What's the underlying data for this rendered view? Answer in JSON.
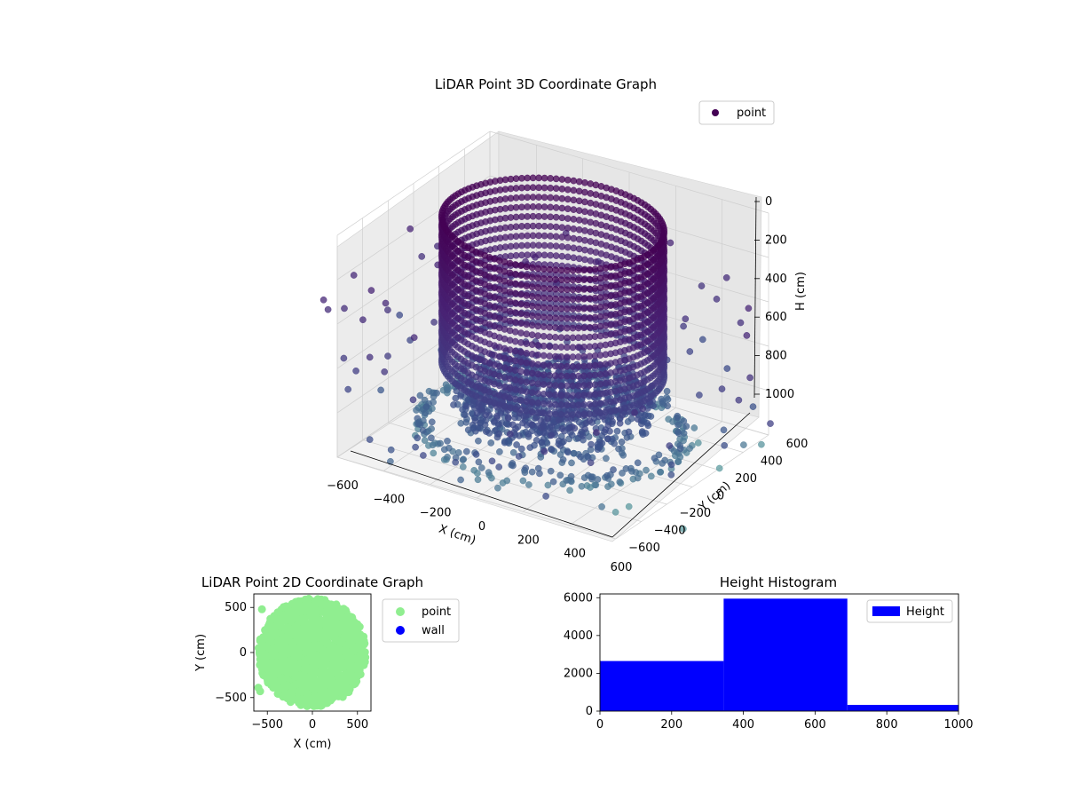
{
  "chart_data": [
    {
      "type": "scatter3d",
      "title": "LiDAR Point 3D Coordinate Graph",
      "xlabel": "X (cm)",
      "ylabel": "Y (cm)",
      "zlabel": "H (cm)",
      "xlim": [
        -600,
        600
      ],
      "ylim": [
        -600,
        600
      ],
      "zlim": [
        0,
        1000
      ],
      "z_axis_inverted": true,
      "x_ticks": [
        "−600",
        "−400",
        "−200",
        "0",
        "200",
        "400",
        "600"
      ],
      "y_ticks": [
        "−600",
        "−400",
        "−200",
        "0",
        "200",
        "400",
        "600"
      ],
      "z_ticks": [
        "0",
        "200",
        "400",
        "600",
        "800",
        "1000"
      ],
      "grid": true,
      "colormap": "viridis",
      "legend": {
        "position": "top-right",
        "entries": [
          {
            "label": "point",
            "color": "#440154"
          }
        ]
      },
      "shape": {
        "wall": {
          "radius": 420,
          "h_range": [
            0,
            650
          ]
        },
        "floor": {
          "radius": 380,
          "h_range": [
            700,
            900
          ]
        },
        "outer_ring": {
          "radius": 500,
          "h": 950
        },
        "scattered": {
          "radius_range": [
            500,
            900
          ],
          "h_range": [
            400,
            1000
          ]
        }
      }
    },
    {
      "type": "scatter",
      "title": "LiDAR Point 2D Coordinate Graph",
      "xlabel": "X (cm)",
      "ylabel": "Y (cm)",
      "xlim": [
        -650,
        650
      ],
      "ylim": [
        -650,
        650
      ],
      "x_ticks": [
        "−500",
        "0",
        "500"
      ],
      "y_ticks": [
        "−500",
        "0",
        "500"
      ],
      "legend": {
        "position": "outside-right",
        "entries": [
          {
            "label": "point",
            "color": "#90ee90"
          },
          {
            "label": "wall",
            "color": "#0000ff"
          }
        ]
      },
      "series": [
        {
          "name": "point",
          "color": "#90ee90",
          "shape": "filled disc",
          "center": [
            0,
            0
          ],
          "radius": 600
        },
        {
          "name": "wall",
          "color": "#0000ff",
          "values": []
        }
      ]
    },
    {
      "type": "bar",
      "title": "Height Histogram",
      "xlim": [
        0,
        1000
      ],
      "ylim": [
        0,
        6200
      ],
      "x_ticks": [
        "0",
        "200",
        "400",
        "600",
        "800",
        "1000"
      ],
      "y_ticks": [
        "0",
        "2000",
        "4000",
        "6000"
      ],
      "bins": [
        {
          "from": 0,
          "to": 345,
          "count": 2650
        },
        {
          "from": 345,
          "to": 690,
          "count": 5950
        },
        {
          "from": 690,
          "to": 1000,
          "count": 330
        }
      ],
      "color": "#0000ff",
      "legend": {
        "position": "top-right",
        "entries": [
          {
            "label": "Height",
            "color": "#0000ff"
          }
        ]
      }
    }
  ]
}
